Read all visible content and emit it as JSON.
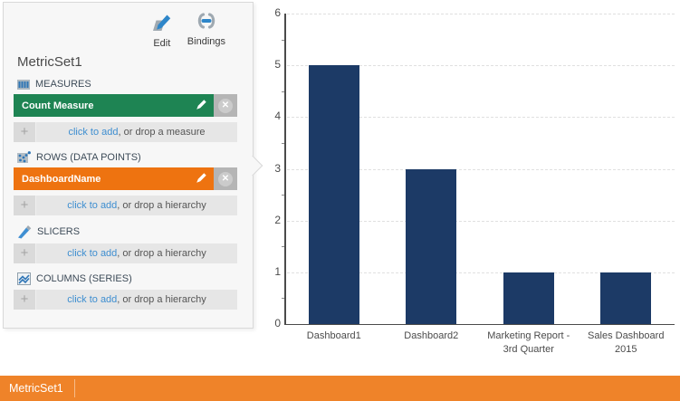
{
  "panel": {
    "title": "MetricSet1",
    "toolbar": {
      "edit_label": "Edit",
      "bindings_label": "Bindings"
    },
    "sections": [
      {
        "key": "measures",
        "icon": "measures-icon",
        "label": "MEASURES",
        "chips": [
          {
            "label": "Count Measure",
            "color": "#1E8453"
          }
        ],
        "add_link": "click to add",
        "add_rest": ", or drop a measure"
      },
      {
        "key": "rows",
        "icon": "rows-icon",
        "label": "ROWS (DATA POINTS)",
        "chips": [
          {
            "label": "DashboardName",
            "color": "#EE7310"
          }
        ],
        "add_link": "click to add",
        "add_rest": ", or drop a hierarchy"
      },
      {
        "key": "slicers",
        "icon": "slicers-icon",
        "label": "SLICERS",
        "chips": [],
        "add_link": "click to add",
        "add_rest": ", or drop a hierarchy"
      },
      {
        "key": "columns",
        "icon": "columns-icon",
        "label": "COLUMNS (SERIES)",
        "chips": [],
        "add_link": "click to add",
        "add_rest": ", or drop a hierarchy"
      }
    ]
  },
  "icon_glyphs": {
    "plus": "+",
    "remove": "✕"
  },
  "chart_data": {
    "type": "bar",
    "categories": [
      "Dashboard1",
      "Dashboard2",
      "Marketing Report - 3rd Quarter",
      "Sales Dashboard 2015"
    ],
    "values": [
      5,
      3,
      1,
      1
    ],
    "yticks": [
      0,
      1,
      2,
      3,
      4,
      5,
      6
    ],
    "ylim": [
      0,
      6
    ],
    "ytick_interval": 1,
    "title": "",
    "xlabel": "",
    "ylabel": "",
    "bar_color": "#1C3A66",
    "grid": "horizontal-dashed",
    "legend": "none"
  },
  "footer": {
    "title": "MetricSet1",
    "color": "#EF8329"
  },
  "colors": {
    "accent_blue": "#2E86C9",
    "link_blue": "#3E8ED0",
    "chip_green": "#1E8453",
    "chip_orange": "#EE7310",
    "bar_navy": "#1C3A66",
    "footer_orange": "#EF8329"
  }
}
